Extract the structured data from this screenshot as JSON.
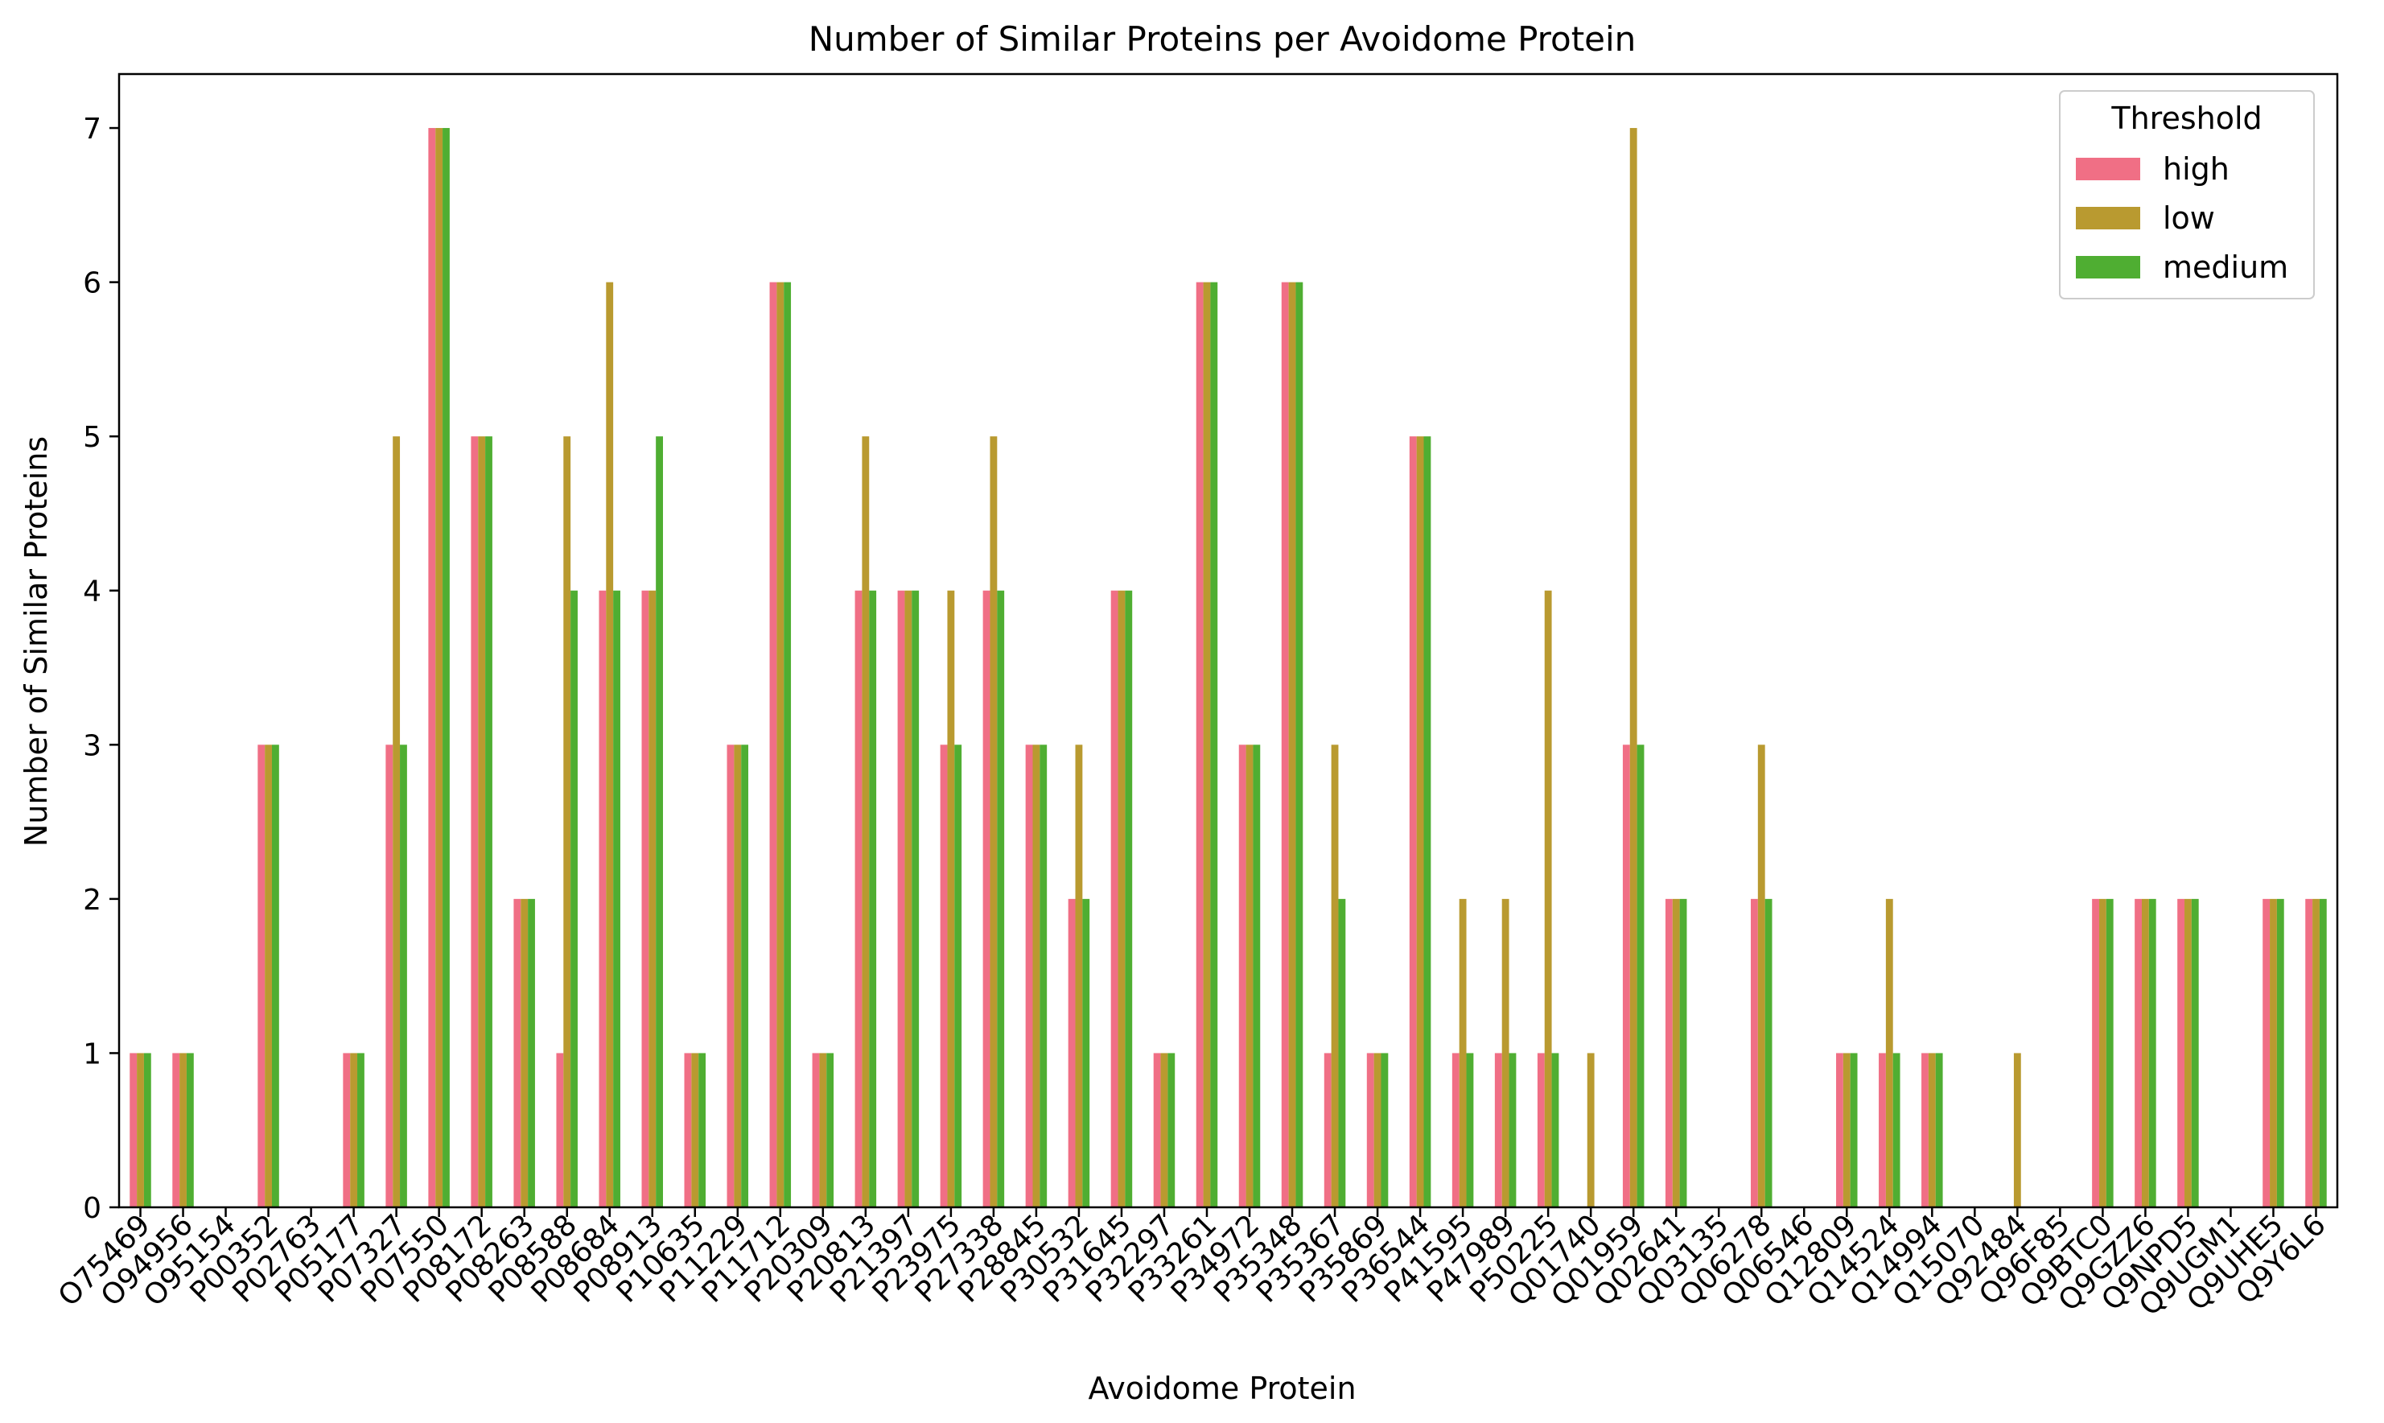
{
  "chart_data": {
    "type": "bar",
    "title": "Number of Similar Proteins per Avoidome Protein",
    "xlabel": "Avoidome Protein",
    "ylabel": "Number of Similar Proteins",
    "ylim": [
      0,
      7.35
    ],
    "yticks": [
      0,
      1,
      2,
      3,
      4,
      5,
      6,
      7
    ],
    "grid": false,
    "legend": {
      "title": "Threshold",
      "position": "top-right"
    },
    "categories": [
      "O75469",
      "O94956",
      "O95154",
      "P00352",
      "P02763",
      "P05177",
      "P07327",
      "P07550",
      "P08172",
      "P08263",
      "P08588",
      "P08684",
      "P08913",
      "P10635",
      "P11229",
      "P11712",
      "P20309",
      "P20813",
      "P21397",
      "P23975",
      "P27338",
      "P28845",
      "P30532",
      "P31645",
      "P32297",
      "P33261",
      "P34972",
      "P35348",
      "P35367",
      "P35869",
      "P36544",
      "P41595",
      "P47989",
      "P50225",
      "Q01740",
      "Q01959",
      "Q02641",
      "Q03135",
      "Q06278",
      "Q06546",
      "Q12809",
      "Q14524",
      "Q14994",
      "Q15070",
      "Q92484",
      "Q96F85",
      "Q9BTC0",
      "Q9GZZ6",
      "Q9NPD5",
      "Q9UGM1",
      "Q9UHE5",
      "Q9Y6L6"
    ],
    "series": [
      {
        "name": "high",
        "color": "#f06f85",
        "values": [
          1,
          1,
          0,
          3,
          0,
          1,
          3,
          7,
          5,
          2,
          1,
          4,
          4,
          1,
          3,
          6,
          1,
          4,
          4,
          3,
          4,
          3,
          2,
          4,
          1,
          6,
          3,
          6,
          1,
          1,
          5,
          1,
          1,
          1,
          0,
          3,
          2,
          0,
          2,
          0,
          1,
          1,
          1,
          0,
          0,
          0,
          2,
          2,
          2,
          0,
          2,
          2
        ]
      },
      {
        "name": "low",
        "color": "#b99a30",
        "values": [
          1,
          1,
          0,
          3,
          0,
          1,
          5,
          7,
          5,
          2,
          5,
          6,
          4,
          1,
          3,
          6,
          1,
          5,
          4,
          4,
          5,
          3,
          3,
          4,
          1,
          6,
          3,
          6,
          3,
          1,
          5,
          2,
          2,
          4,
          1,
          7,
          2,
          0,
          3,
          0,
          1,
          2,
          1,
          0,
          1,
          0,
          2,
          2,
          2,
          0,
          2,
          2
        ]
      },
      {
        "name": "medium",
        "color": "#4fae32",
        "values": [
          1,
          1,
          0,
          3,
          0,
          1,
          3,
          7,
          5,
          2,
          4,
          4,
          5,
          1,
          3,
          6,
          1,
          4,
          4,
          3,
          4,
          3,
          2,
          4,
          1,
          6,
          3,
          6,
          2,
          1,
          5,
          1,
          1,
          1,
          0,
          3,
          2,
          0,
          2,
          0,
          1,
          1,
          1,
          0,
          0,
          0,
          2,
          2,
          2,
          0,
          2,
          2
        ]
      }
    ]
  }
}
